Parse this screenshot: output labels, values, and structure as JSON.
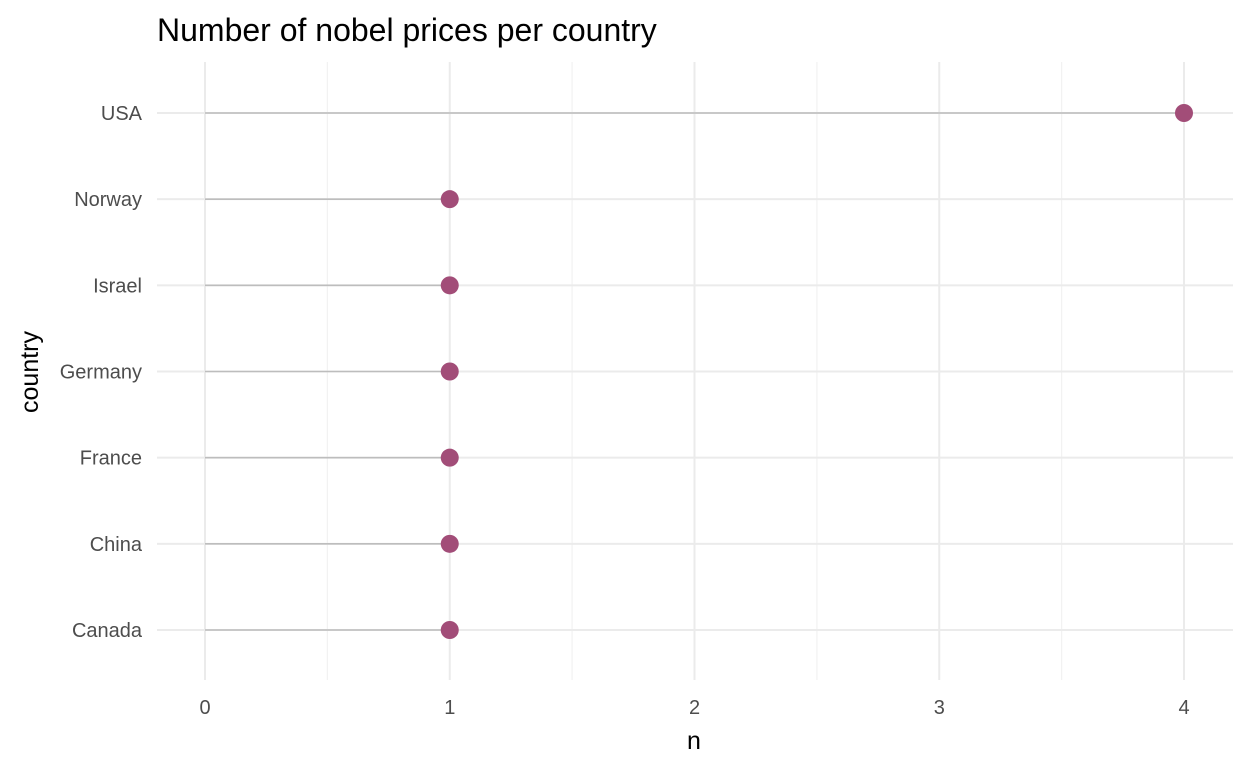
{
  "chart_data": {
    "type": "lollipop",
    "title": "Number of nobel prices per country",
    "xlabel": "n",
    "ylabel": "country",
    "categories": [
      "Canada",
      "China",
      "France",
      "Germany",
      "Israel",
      "Norway",
      "USA"
    ],
    "values": [
      1,
      1,
      1,
      1,
      1,
      1,
      4
    ],
    "xlim": [
      0,
      4
    ],
    "x_ticks": [
      0,
      1,
      2,
      3,
      4
    ],
    "grid": true,
    "colors": {
      "point": "#a24d78",
      "segment": "#bdbdbd"
    }
  }
}
